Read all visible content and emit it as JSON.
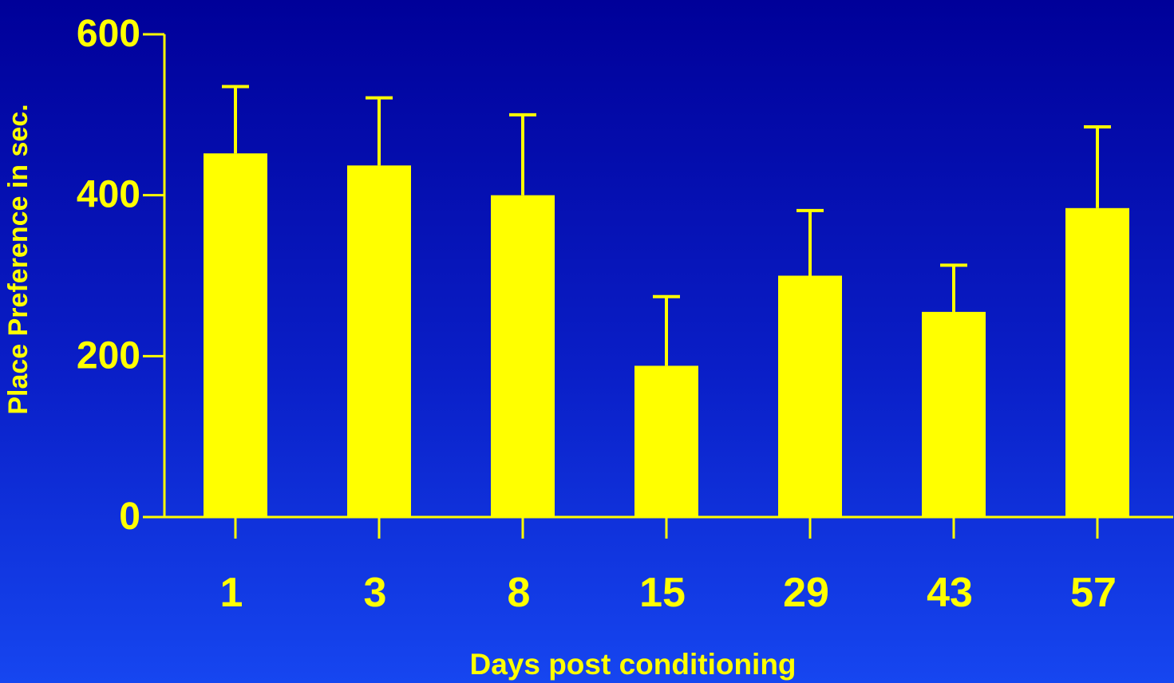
{
  "chart_data": {
    "type": "bar",
    "title": "",
    "xlabel": "Days post conditioning",
    "ylabel": "Place Preference in sec.",
    "categories": [
      "1",
      "3",
      "8",
      "15",
      "29",
      "43",
      "57"
    ],
    "values": [
      452,
      437,
      400,
      188,
      300,
      255,
      384
    ],
    "error_upper": [
      535,
      521,
      500,
      274,
      381,
      313,
      485
    ],
    "ylim": [
      0,
      600
    ],
    "yticks": [
      "0",
      "200",
      "400",
      "600"
    ],
    "grid": false,
    "legend": "none",
    "colors": {
      "bar": "#FFFF00",
      "axis": "#FFFF00",
      "text": "#FFFF00",
      "background_top": "#000099",
      "background_bottom": "#1646F0"
    }
  }
}
